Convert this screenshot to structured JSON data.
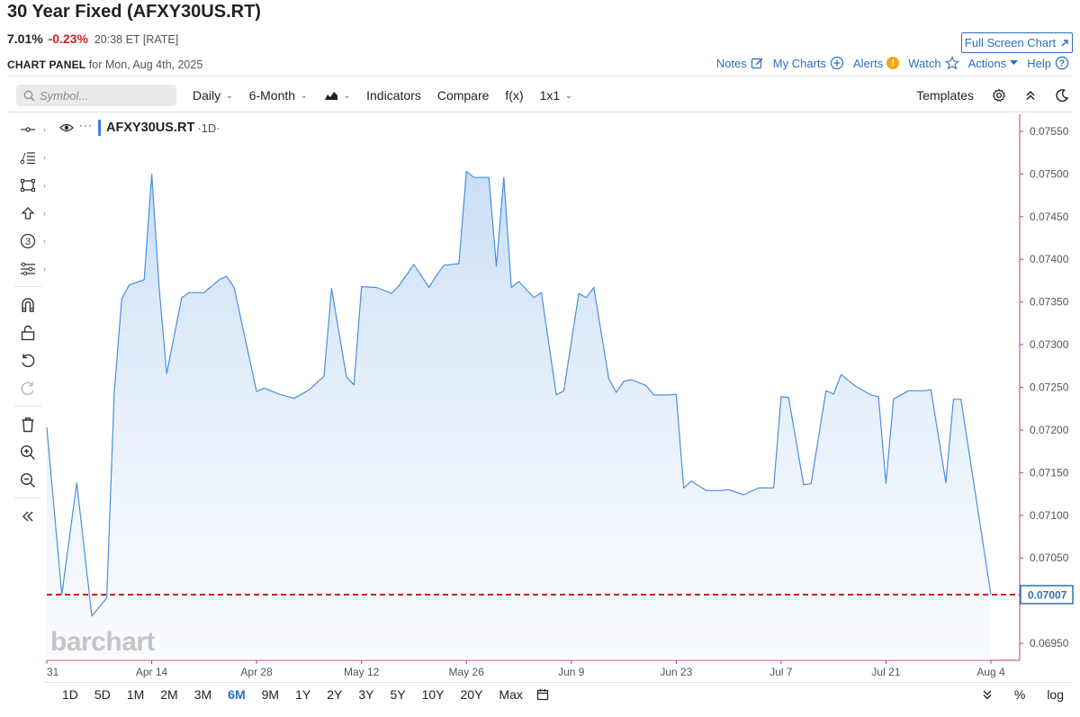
{
  "header": {
    "title": "30 Year Fixed (AFXY30US.RT)",
    "price": "7.01%",
    "change": "-0.23%",
    "time_meta": "20:38 ET [RATE]",
    "fullscreen_label": "Full Screen Chart",
    "panel_label": "CHART PANEL",
    "panel_date": "for Mon, Aug 4th, 2025"
  },
  "top_links": {
    "notes": "Notes",
    "my_charts": "My Charts",
    "alerts": "Alerts",
    "alerts_badge": "!",
    "watch": "Watch",
    "actions": "Actions",
    "help": "Help"
  },
  "toolbar": {
    "search_placeholder": "Symbol...",
    "interval": "Daily",
    "period": "6-Month",
    "indicators": "Indicators",
    "compare": "Compare",
    "fx": "f(x)",
    "layout": "1x1",
    "templates": "Templates"
  },
  "left_tools": [
    "crosshair-icon",
    "trendline-list-icon",
    "rectangle-icon",
    "arrow-up-icon",
    "counter-icon",
    "fibonacci-icon",
    "magnet-icon",
    "lock-icon",
    "undo-icon",
    "redo-icon",
    "trash-icon",
    "zoom-in-icon",
    "zoom-out-icon",
    "collapse-icon"
  ],
  "legend": {
    "symbol": "AFXY30US.RT",
    "timeframe": "·1D·"
  },
  "watermark": "barchart",
  "current_value_label": "0.07007",
  "range_buttons": [
    "1D",
    "5D",
    "1M",
    "2M",
    "3M",
    "6M",
    "9M",
    "1Y",
    "2Y",
    "3Y",
    "5Y",
    "10Y",
    "20Y",
    "Max"
  ],
  "active_range": "6M",
  "bottom_right": {
    "percent": "%",
    "log": "log"
  },
  "colors": {
    "accent": "#2a6fbd",
    "line": "#4a8fe0",
    "negative": "#d42020",
    "current_line": "#d42020",
    "price_axis_border": "#c2368f"
  },
  "chart_data": {
    "type": "area",
    "symbol": "AFXY30US.RT",
    "ylim": [
      0.0693,
      0.0757
    ],
    "y_ticks": [
      "0.07550",
      "0.07500",
      "0.07450",
      "0.07400",
      "0.07350",
      "0.07300",
      "0.07250",
      "0.07200",
      "0.07150",
      "0.07100",
      "0.07050",
      "0.07000",
      "0.06950"
    ],
    "x_ticks": [
      {
        "label": "31",
        "date": "2025-03-31"
      },
      {
        "label": "Apr 14",
        "date": "2025-04-14"
      },
      {
        "label": "Apr 28",
        "date": "2025-04-28"
      },
      {
        "label": "May 12",
        "date": "2025-05-12"
      },
      {
        "label": "May 26",
        "date": "2025-05-26"
      },
      {
        "label": "Jun 9",
        "date": "2025-06-09"
      },
      {
        "label": "Jun 23",
        "date": "2025-06-23"
      },
      {
        "label": "Jul 7",
        "date": "2025-07-07"
      },
      {
        "label": "Jul 21",
        "date": "2025-07-21"
      },
      {
        "label": "Aug 4",
        "date": "2025-08-04"
      }
    ],
    "current_value": 0.07007,
    "points": [
      {
        "date": "2025-03-31",
        "value": 0.07203
      },
      {
        "date": "2025-04-02",
        "value": 0.07007
      },
      {
        "date": "2025-04-04",
        "value": 0.07138
      },
      {
        "date": "2025-04-06",
        "value": 0.06982
      },
      {
        "date": "2025-04-08",
        "value": 0.07003
      },
      {
        "date": "2025-04-09",
        "value": 0.07243
      },
      {
        "date": "2025-04-10",
        "value": 0.07354
      },
      {
        "date": "2025-04-11",
        "value": 0.0737
      },
      {
        "date": "2025-04-13",
        "value": 0.07376
      },
      {
        "date": "2025-04-14",
        "value": 0.075
      },
      {
        "date": "2025-04-15",
        "value": 0.07366
      },
      {
        "date": "2025-04-16",
        "value": 0.07266
      },
      {
        "date": "2025-04-18",
        "value": 0.07355
      },
      {
        "date": "2025-04-19",
        "value": 0.07361
      },
      {
        "date": "2025-04-21",
        "value": 0.07361
      },
      {
        "date": "2025-04-23",
        "value": 0.07376
      },
      {
        "date": "2025-04-24",
        "value": 0.0738
      },
      {
        "date": "2025-04-25",
        "value": 0.07367
      },
      {
        "date": "2025-04-28",
        "value": 0.07245
      },
      {
        "date": "2025-04-29",
        "value": 0.07249
      },
      {
        "date": "2025-05-01",
        "value": 0.07242
      },
      {
        "date": "2025-05-03",
        "value": 0.07237
      },
      {
        "date": "2025-05-05",
        "value": 0.07247
      },
      {
        "date": "2025-05-07",
        "value": 0.07263
      },
      {
        "date": "2025-05-08",
        "value": 0.07366
      },
      {
        "date": "2025-05-10",
        "value": 0.07262
      },
      {
        "date": "2025-05-11",
        "value": 0.07253
      },
      {
        "date": "2025-05-12",
        "value": 0.07368
      },
      {
        "date": "2025-05-14",
        "value": 0.07367
      },
      {
        "date": "2025-05-16",
        "value": 0.0736
      },
      {
        "date": "2025-05-17",
        "value": 0.07369
      },
      {
        "date": "2025-05-19",
        "value": 0.07394
      },
      {
        "date": "2025-05-21",
        "value": 0.07367
      },
      {
        "date": "2025-05-22",
        "value": 0.07381
      },
      {
        "date": "2025-05-23",
        "value": 0.07393
      },
      {
        "date": "2025-05-25",
        "value": 0.07395
      },
      {
        "date": "2025-05-26",
        "value": 0.07503
      },
      {
        "date": "2025-05-27",
        "value": 0.07496
      },
      {
        "date": "2025-05-28",
        "value": 0.07496
      },
      {
        "date": "2025-05-29",
        "value": 0.07496
      },
      {
        "date": "2025-05-30",
        "value": 0.07392
      },
      {
        "date": "2025-05-31",
        "value": 0.07496
      },
      {
        "date": "2025-06-01",
        "value": 0.07367
      },
      {
        "date": "2025-06-02",
        "value": 0.07374
      },
      {
        "date": "2025-06-04",
        "value": 0.07355
      },
      {
        "date": "2025-06-05",
        "value": 0.07361
      },
      {
        "date": "2025-06-07",
        "value": 0.07241
      },
      {
        "date": "2025-06-08",
        "value": 0.07246
      },
      {
        "date": "2025-06-10",
        "value": 0.0736
      },
      {
        "date": "2025-06-11",
        "value": 0.07355
      },
      {
        "date": "2025-06-12",
        "value": 0.07367
      },
      {
        "date": "2025-06-14",
        "value": 0.0726
      },
      {
        "date": "2025-06-15",
        "value": 0.07244
      },
      {
        "date": "2025-06-16",
        "value": 0.07257
      },
      {
        "date": "2025-06-17",
        "value": 0.07259
      },
      {
        "date": "2025-06-19",
        "value": 0.07252
      },
      {
        "date": "2025-06-20",
        "value": 0.07241
      },
      {
        "date": "2025-06-22",
        "value": 0.07241
      },
      {
        "date": "2025-06-23",
        "value": 0.07242
      },
      {
        "date": "2025-06-24",
        "value": 0.07132
      },
      {
        "date": "2025-06-25",
        "value": 0.0714
      },
      {
        "date": "2025-06-27",
        "value": 0.07129
      },
      {
        "date": "2025-06-29",
        "value": 0.07129
      },
      {
        "date": "2025-06-30",
        "value": 0.0713
      },
      {
        "date": "2025-07-02",
        "value": 0.07124
      },
      {
        "date": "2025-07-04",
        "value": 0.07132
      },
      {
        "date": "2025-07-05",
        "value": 0.07132
      },
      {
        "date": "2025-07-06",
        "value": 0.07132
      },
      {
        "date": "2025-07-07",
        "value": 0.07239
      },
      {
        "date": "2025-07-08",
        "value": 0.07238
      },
      {
        "date": "2025-07-10",
        "value": 0.07136
      },
      {
        "date": "2025-07-11",
        "value": 0.07137
      },
      {
        "date": "2025-07-13",
        "value": 0.07246
      },
      {
        "date": "2025-07-14",
        "value": 0.07242
      },
      {
        "date": "2025-07-15",
        "value": 0.07265
      },
      {
        "date": "2025-07-17",
        "value": 0.07251
      },
      {
        "date": "2025-07-19",
        "value": 0.07241
      },
      {
        "date": "2025-07-20",
        "value": 0.07239
      },
      {
        "date": "2025-07-21",
        "value": 0.07137
      },
      {
        "date": "2025-07-22",
        "value": 0.07236
      },
      {
        "date": "2025-07-24",
        "value": 0.07246
      },
      {
        "date": "2025-07-26",
        "value": 0.07246
      },
      {
        "date": "2025-07-27",
        "value": 0.07247
      },
      {
        "date": "2025-07-29",
        "value": 0.07138
      },
      {
        "date": "2025-07-30",
        "value": 0.07236
      },
      {
        "date": "2025-07-31",
        "value": 0.07236
      },
      {
        "date": "2025-08-04",
        "value": 0.07007
      }
    ]
  }
}
